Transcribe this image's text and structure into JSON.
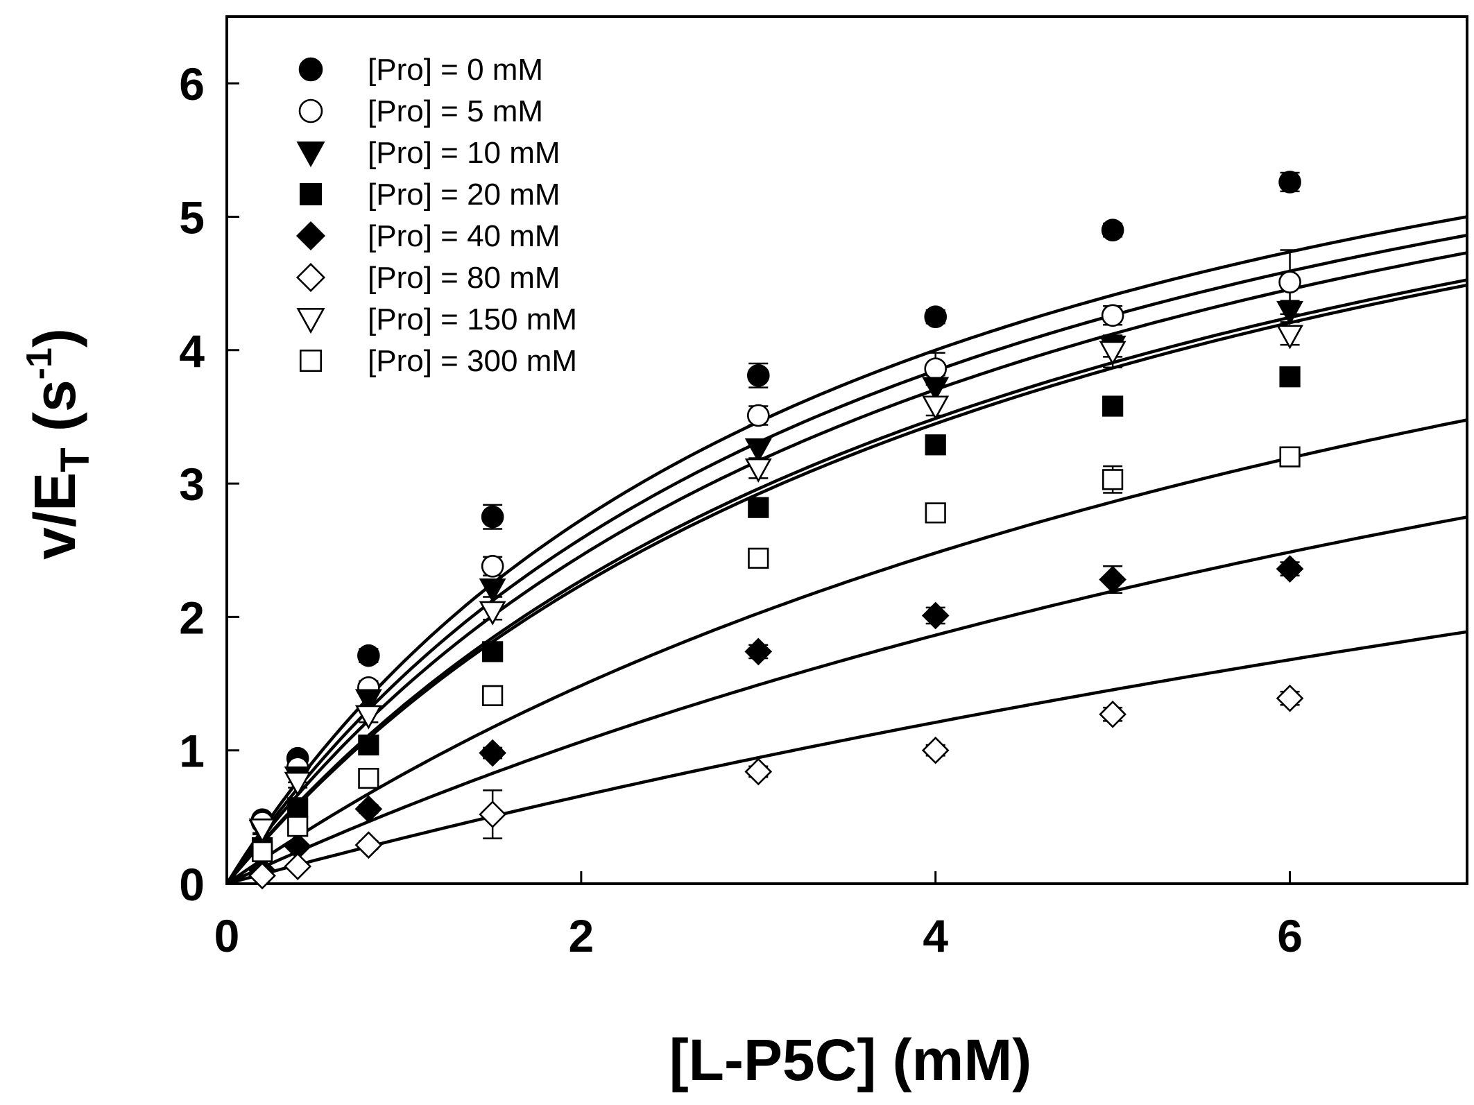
{
  "chart_data": {
    "type": "scatter",
    "title": "",
    "xlabel": "[L-P5C] (mM)",
    "ylabel": {
      "base": "v/E",
      "sub": "T",
      "unit_open": " (s",
      "unit_sup": "-1",
      "unit_close": ")"
    },
    "xlim": [
      0,
      7
    ],
    "ylim": [
      0,
      6.5
    ],
    "xticks": [
      "0",
      "2",
      "4",
      "6"
    ],
    "yticks": [
      "0",
      "1",
      "2",
      "3",
      "4",
      "5",
      "6"
    ],
    "legend_position": "top-left",
    "fit_curve_color": "#000000",
    "series": [
      {
        "name": "[Pro] = 0 mM",
        "marker": "circle",
        "filled": true,
        "x": [
          0.2,
          0.4,
          0.8,
          1.5,
          3,
          4,
          5,
          6
        ],
        "y": [
          0.48,
          0.94,
          1.71,
          2.75,
          3.81,
          4.25,
          4.9,
          5.26
        ],
        "err": [
          0.03,
          0.04,
          0.05,
          0.09,
          0.09,
          0.05,
          0.05,
          0.07
        ],
        "fit": {
          "vmax": 7.5,
          "km": 3.5
        }
      },
      {
        "name": "[Pro] = 5 mM",
        "marker": "circle",
        "filled": false,
        "x": [
          0.2,
          0.4,
          0.8,
          1.5,
          3,
          4,
          5,
          6
        ],
        "y": [
          0.46,
          0.87,
          1.47,
          2.38,
          3.51,
          3.86,
          4.26,
          4.51
        ],
        "err": [
          0.03,
          0.04,
          0.05,
          0.07,
          0.07,
          0.12,
          0.07,
          0.24
        ],
        "fit": {
          "vmax": 7.5,
          "km": 3.8
        }
      },
      {
        "name": "[Pro] = 10 mM",
        "marker": "triangle-down",
        "filled": true,
        "x": [
          0.2,
          0.4,
          0.8,
          1.5,
          3,
          4,
          5,
          6
        ],
        "y": [
          0.4,
          0.8,
          1.38,
          2.21,
          3.26,
          3.72,
          4.03,
          4.29
        ],
        "err": [
          0.03,
          0.04,
          0.05,
          0.06,
          0.07,
          0.09,
          0.08,
          0.08
        ],
        "fit": {
          "vmax": 7.5,
          "km": 4.1
        }
      },
      {
        "name": "[Pro] = 20 mM",
        "marker": "square",
        "filled": true,
        "x": [
          0.2,
          0.4,
          0.8,
          1.5,
          3,
          4,
          5,
          6
        ],
        "y": [
          0.27,
          0.57,
          1.04,
          1.74,
          2.82,
          3.29,
          3.58,
          3.8
        ],
        "err": [
          0.02,
          0.03,
          0.04,
          0.05,
          0.07,
          0.05,
          0.05,
          0.05
        ],
        "fit": {
          "vmax": 7.5,
          "km": 4.7
        }
      },
      {
        "name": "[Pro] = 40 mM",
        "marker": "diamond",
        "filled": true,
        "x": [
          0.2,
          0.4,
          0.8,
          1.5,
          3,
          4,
          5,
          6
        ],
        "y": [
          0.1,
          0.28,
          0.56,
          0.98,
          1.74,
          2.01,
          2.28,
          2.36
        ],
        "err": [
          0.02,
          0.02,
          0.03,
          0.04,
          0.05,
          0.06,
          0.1,
          0.05
        ],
        "fit": {
          "vmax": 7.5,
          "km": 12.1
        }
      },
      {
        "name": "[Pro] = 80 mM",
        "marker": "diamond",
        "filled": false,
        "x": [
          0.2,
          0.4,
          0.8,
          1.5,
          3,
          4,
          5,
          6
        ],
        "y": [
          0.06,
          0.13,
          0.29,
          0.52,
          0.84,
          1.0,
          1.27,
          1.39
        ],
        "err": [
          0.02,
          0.02,
          0.03,
          0.18,
          0.04,
          0.04,
          0.05,
          0.05
        ],
        "fit": {
          "vmax": 7.5,
          "km": 20.8
        }
      },
      {
        "name": "[Pro] = 150 mM",
        "marker": "triangle-down",
        "filled": false,
        "x": [
          0.2,
          0.4,
          0.8,
          1.5,
          3,
          4,
          5,
          6
        ],
        "y": [
          0.41,
          0.76,
          1.26,
          2.04,
          3.11,
          3.58,
          3.99,
          4.11
        ],
        "err": [
          0.03,
          0.04,
          0.05,
          0.06,
          0.07,
          0.07,
          0.12,
          0.07
        ],
        "fit": {
          "vmax": 7.5,
          "km": 4.6
        }
      },
      {
        "name": "[Pro] = 300 mM",
        "marker": "square",
        "filled": false,
        "x": [
          0.2,
          0.4,
          0.8,
          1.5,
          3,
          4,
          5,
          6
        ],
        "y": [
          0.24,
          0.43,
          0.79,
          1.41,
          2.44,
          2.78,
          3.03,
          3.2
        ],
        "err": [
          0.02,
          0.03,
          0.04,
          0.05,
          0.06,
          0.06,
          0.1,
          0.05
        ],
        "fit": {
          "vmax": 7.5,
          "km": 8.1
        }
      }
    ]
  }
}
